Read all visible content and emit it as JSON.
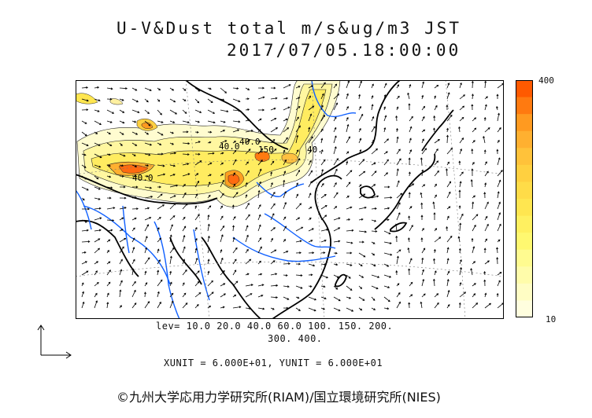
{
  "title": {
    "line1": "U-V&Dust total m/s&ug/m3 JST",
    "line2": "2017/07/05.18:00:00"
  },
  "levels": {
    "line1": "lev= 10.0 20.0 40.0 60.0 100. 150. 200.",
    "line2": "300. 400."
  },
  "units_text": "XUNIT = 6.000E+01, YUNIT = 6.000E+01",
  "copyright": "©九州大学応用力学研究所(RIAM)/国立環境研究所(NIES)",
  "colorbar": {
    "max_label": "400",
    "min_label": "10",
    "colors": [
      "#ff5a00",
      "#ff7a10",
      "#ff9a20",
      "#ffb030",
      "#ffc23a",
      "#ffd040",
      "#ffdc48",
      "#ffe650",
      "#fff060",
      "#fff870",
      "#fffb90",
      "#fffcaa",
      "#fffdc4",
      "#fffede"
    ]
  },
  "contour_labels": [
    "40.0",
    "40.0",
    "40.0",
    "150",
    "40."
  ],
  "colors": {
    "coast": "#000000",
    "river": "#1060ff",
    "dust_low": "#fff8b0",
    "dust_high": "#ff5a00"
  }
}
